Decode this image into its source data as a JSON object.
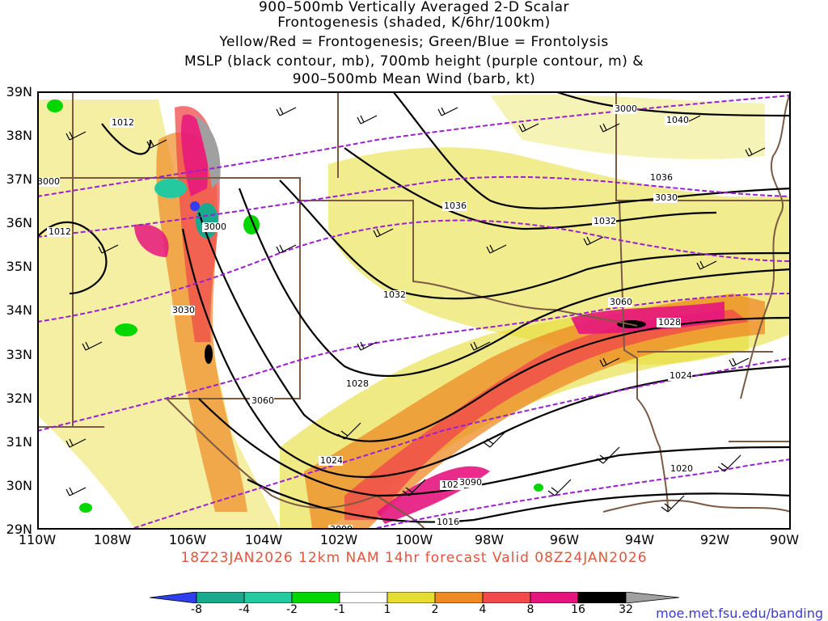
{
  "title_lines": [
    "900–500mb Vertically Averaged 2-D Scalar",
    "Frontogenesis (shaded, K/6hr/100km)",
    "Yellow/Red = Frontogenesis;  Green/Blue = Frontolysis",
    "MSLP (black contour, mb), 700mb height (purple contour, m) &",
    "900–500mb Mean Wind (barb, kt)"
  ],
  "lat_labels": [
    "39N",
    "38N",
    "37N",
    "36N",
    "35N",
    "34N",
    "33N",
    "32N",
    "31N",
    "30N",
    "29N"
  ],
  "lon_labels": [
    "110W",
    "108W",
    "106W",
    "104W",
    "102W",
    "100W",
    "98W",
    "96W",
    "94W",
    "92W",
    "90W"
  ],
  "footer": "18Z23JAN2026 12km NAM 14hr forecast Valid 08Z24JAN2026",
  "colorbar": {
    "labels": [
      "-8",
      "-4",
      "-2",
      "-1",
      "1",
      "2",
      "4",
      "8",
      "16",
      "32"
    ],
    "colors": [
      "#2e3ff0",
      "#19a98c",
      "#25c9a0",
      "#3ad653",
      "#00d700",
      "#ffffff",
      "#e6dc32",
      "#ee8a24",
      "#f04a4a",
      "#e6157e",
      "#000000",
      "#a0a0a0"
    ]
  },
  "url": "moe.met.fsu.edu/banding",
  "contour_labels": {
    "mslp": [
      "1012",
      "1036",
      "1040",
      "1036",
      "1032",
      "1012",
      "1032",
      "1028",
      "1024",
      "1028",
      "1024",
      "1020",
      "1020",
      "1016"
    ],
    "height": [
      "3000",
      "3000",
      "3030",
      "3060",
      "3030",
      "3060",
      "3090",
      "3000",
      "3000"
    ]
  },
  "colors": {
    "mslp": "#000000",
    "height": "#9b1fd2",
    "borders": "#7a5a44"
  }
}
